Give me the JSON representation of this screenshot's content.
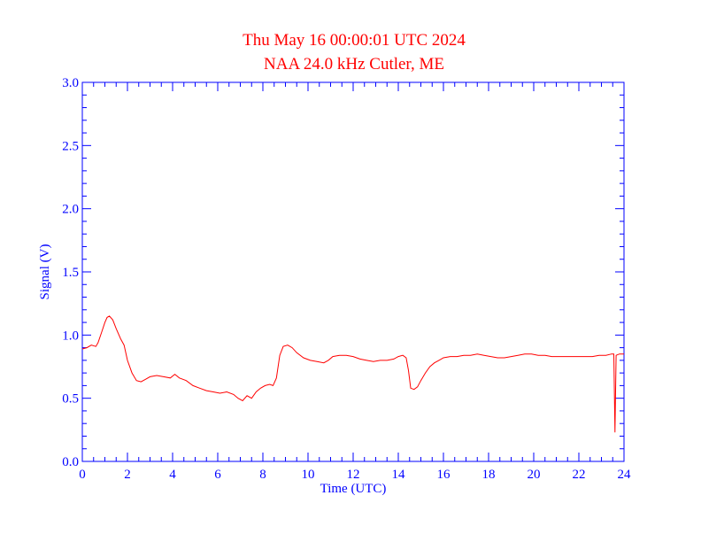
{
  "chart_data": {
    "type": "line",
    "title": "Thu May 16 00:00:01 UTC 2024",
    "subtitle": "NAA 24.0 kHz Cutler, ME",
    "xlabel": "Time (UTC)",
    "ylabel": "Signal (V)",
    "xlim": [
      0,
      24
    ],
    "ylim": [
      0.0,
      3.0
    ],
    "x_ticks": [
      0,
      2,
      4,
      6,
      8,
      10,
      12,
      14,
      16,
      18,
      20,
      22,
      24
    ],
    "x_tick_labels": [
      "0",
      "2",
      "4",
      "6",
      "8",
      "10",
      "12",
      "14",
      "16",
      "18",
      "20",
      "22",
      "24"
    ],
    "y_ticks": [
      0.0,
      0.5,
      1.0,
      1.5,
      2.0,
      2.5,
      3.0
    ],
    "y_tick_labels": [
      "0.0",
      "0.5",
      "1.0",
      "1.5",
      "2.0",
      "2.5",
      "3.0"
    ],
    "grid": false,
    "colors": {
      "axes": "#0000ff",
      "series": "#ff0000",
      "title": "#ff0000"
    },
    "series": [
      {
        "x": [
          0,
          0.2,
          0.4,
          0.6,
          0.7,
          0.85,
          1.0,
          1.1,
          1.2,
          1.35,
          1.5,
          1.7,
          1.85,
          2.0,
          2.2,
          2.4,
          2.6,
          2.8,
          3.0,
          3.3,
          3.6,
          3.9,
          4.1,
          4.3,
          4.6,
          4.9,
          5.2,
          5.5,
          5.8,
          6.1,
          6.4,
          6.7,
          6.9,
          7.1,
          7.3,
          7.5,
          7.7,
          7.9,
          8.1,
          8.3,
          8.45,
          8.6,
          8.75,
          8.9,
          9.1,
          9.3,
          9.5,
          9.8,
          10.1,
          10.4,
          10.7,
          10.9,
          11.1,
          11.4,
          11.7,
          12.0,
          12.3,
          12.6,
          12.9,
          13.2,
          13.5,
          13.8,
          14.0,
          14.2,
          14.35,
          14.45,
          14.55,
          14.7,
          14.85,
          15.0,
          15.2,
          15.4,
          15.6,
          15.8,
          16.0,
          16.3,
          16.6,
          16.9,
          17.2,
          17.5,
          17.8,
          18.1,
          18.4,
          18.7,
          19.0,
          19.3,
          19.6,
          19.9,
          20.2,
          20.5,
          20.8,
          21.1,
          21.4,
          21.7,
          22.0,
          22.3,
          22.6,
          22.9,
          23.2,
          23.45,
          23.55,
          23.6,
          23.65,
          23.8,
          24.0
        ],
        "y": [
          0.89,
          0.9,
          0.92,
          0.91,
          0.94,
          1.02,
          1.1,
          1.14,
          1.15,
          1.12,
          1.05,
          0.97,
          0.92,
          0.8,
          0.7,
          0.64,
          0.63,
          0.65,
          0.67,
          0.68,
          0.67,
          0.66,
          0.69,
          0.66,
          0.64,
          0.6,
          0.58,
          0.56,
          0.55,
          0.54,
          0.55,
          0.53,
          0.5,
          0.48,
          0.52,
          0.5,
          0.55,
          0.58,
          0.6,
          0.61,
          0.6,
          0.66,
          0.84,
          0.91,
          0.92,
          0.9,
          0.86,
          0.82,
          0.8,
          0.79,
          0.78,
          0.8,
          0.83,
          0.84,
          0.84,
          0.83,
          0.81,
          0.8,
          0.79,
          0.8,
          0.8,
          0.81,
          0.83,
          0.84,
          0.82,
          0.72,
          0.58,
          0.57,
          0.59,
          0.64,
          0.7,
          0.75,
          0.78,
          0.8,
          0.82,
          0.83,
          0.83,
          0.84,
          0.84,
          0.85,
          0.84,
          0.83,
          0.82,
          0.82,
          0.83,
          0.84,
          0.85,
          0.85,
          0.84,
          0.84,
          0.83,
          0.83,
          0.83,
          0.83,
          0.83,
          0.83,
          0.83,
          0.84,
          0.84,
          0.85,
          0.85,
          0.23,
          0.84,
          0.85,
          0.85
        ]
      }
    ]
  }
}
